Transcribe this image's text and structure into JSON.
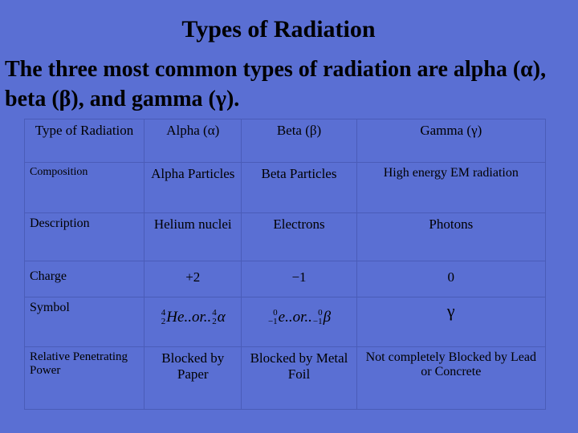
{
  "header": {
    "title": "Types of Radiation",
    "subtitle": "The three most common types of radiation are alpha (α), beta (β), and gamma (γ)."
  },
  "table": {
    "columns": [
      "Type of Radiation",
      "Alpha (α)",
      "Beta (β)",
      "Gamma (γ)"
    ],
    "rows": [
      [
        "Composition",
        "Alpha Particles",
        "Beta Particles",
        "High energy EM radiation"
      ],
      [
        "Description",
        "Helium nuclei",
        "Electrons",
        "Photons"
      ],
      [
        "Charge",
        "+2",
        "−1",
        "0"
      ],
      [
        "Symbol"
      ],
      [
        "Relative Penetrating Power",
        "Blocked by Paper",
        "Blocked by Metal Foil",
        "Not completely Blocked by Lead or Concrete"
      ]
    ],
    "symbols": {
      "alpha": {
        "mass": "4",
        "atomic": "2",
        "element": "He",
        "joiner": "..or..",
        "mass2": "4",
        "atomic2": "2",
        "particle": "α"
      },
      "beta": {
        "mass": "0",
        "atomic": "−1",
        "element": "e",
        "joiner": "..or..",
        "mass2": "0",
        "atomic2": "−1",
        "particle": "β"
      },
      "gamma": "γ"
    }
  }
}
